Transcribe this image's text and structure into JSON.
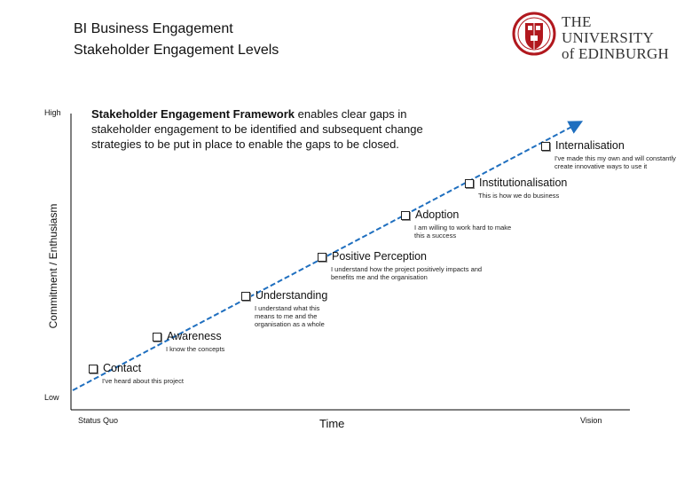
{
  "title": {
    "line1": "BI Business Engagement",
    "line2": "Stakeholder Engagement Levels"
  },
  "logo": {
    "text_line1": "THE UNIVERSITY",
    "text_line2": "of EDINBURGH"
  },
  "intro": {
    "bold": "Stakeholder Engagement Framework",
    "rest": " enables clear gaps in stakeholder engagement to be identified and subsequent change strategies to be put in place to enable the gaps to be closed."
  },
  "axes": {
    "y_title": "Commitment / Enthusiasm",
    "y_high": "High",
    "y_low": "Low",
    "x_title": "Time",
    "x_start": "Status Quo",
    "x_end": "Vision"
  },
  "colors": {
    "arrow": "#1f6fbf",
    "axis": "#000000",
    "logo_red": "#b1181e"
  },
  "stages": [
    {
      "label": "Contact",
      "desc": "I've heard about this project"
    },
    {
      "label": "Awareness",
      "desc": "I know the concepts"
    },
    {
      "label": "Understanding",
      "desc": "I understand what this means to me and the organisation as a whole"
    },
    {
      "label": "Positive Perception",
      "desc": "I understand how the project positively impacts and benefits me and the organisation"
    },
    {
      "label": "Adoption",
      "desc": "I am willing to work hard to make this a success"
    },
    {
      "label": "Institutionalisation",
      "desc": "This is how we do business"
    },
    {
      "label": "Internalisation",
      "desc": "I've made this my own and will constantly create innovative ways to use it"
    }
  ]
}
